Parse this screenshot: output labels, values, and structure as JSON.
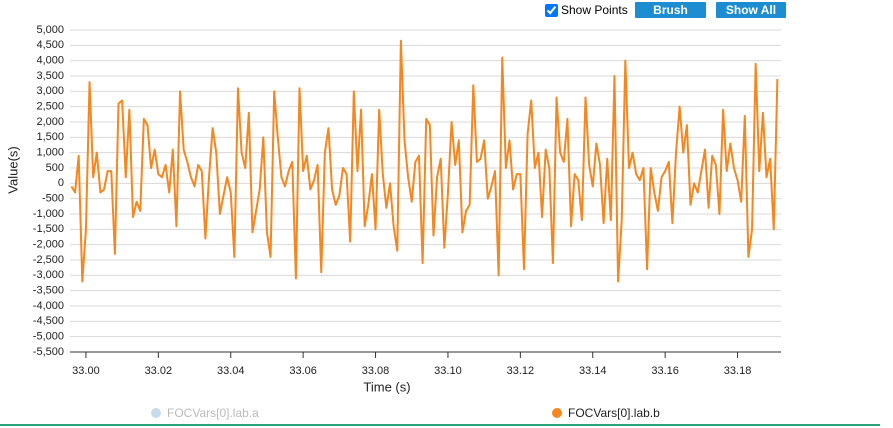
{
  "controls": {
    "show_points": {
      "label": "Show Points",
      "checked": true
    },
    "buttons": [
      "Brush",
      "Show All"
    ]
  },
  "chart_data": {
    "type": "line",
    "x_label": "Time (s)",
    "y_label": "Value(s)",
    "xlim": [
      32.9956,
      33.192
    ],
    "ylim": [
      -5500,
      5000
    ],
    "grid": true,
    "xticks": [
      {
        "value": 33.0,
        "label": "33.00"
      },
      {
        "value": 33.02,
        "label": "33.02"
      },
      {
        "value": 33.04,
        "label": "33.04"
      },
      {
        "value": 33.06,
        "label": "33.06"
      },
      {
        "value": 33.08,
        "label": "33.08"
      },
      {
        "value": 33.1,
        "label": "33.10"
      },
      {
        "value": 33.12,
        "label": "33.12"
      },
      {
        "value": 33.14,
        "label": "33.14"
      },
      {
        "value": 33.16,
        "label": "33.16"
      },
      {
        "value": 33.18,
        "label": "33.18"
      }
    ],
    "yticks": [
      {
        "value": 5000,
        "label": "5,000"
      },
      {
        "value": 4500,
        "label": "4,500"
      },
      {
        "value": 4000,
        "label": "4,000"
      },
      {
        "value": 3500,
        "label": "3,500"
      },
      {
        "value": 3000,
        "label": "3,000"
      },
      {
        "value": 2500,
        "label": "2,500"
      },
      {
        "value": 2000,
        "label": "2,000"
      },
      {
        "value": 1500,
        "label": "1,500"
      },
      {
        "value": 1000,
        "label": "1,000"
      },
      500,
      0,
      -500,
      {
        "value": -1000,
        "label": "-1,000"
      },
      {
        "value": -1500,
        "label": "-1,500"
      },
      {
        "value": -2000,
        "label": "-2,000"
      },
      {
        "value": -2500,
        "label": "-2,500"
      },
      {
        "value": -3000,
        "label": "-3,000"
      },
      {
        "value": -3500,
        "label": "-3,500"
      },
      {
        "value": -4000,
        "label": "-4,000"
      },
      {
        "value": -4500,
        "label": "-4,500"
      },
      {
        "value": -5000,
        "label": "-5,000"
      },
      {
        "value": -5500,
        "label": "-5,500"
      }
    ],
    "x": [
      32.996,
      32.997,
      32.998,
      32.999,
      33.0,
      33.001,
      33.002,
      33.003,
      33.004,
      33.005,
      33.006,
      33.007,
      33.008,
      33.009,
      33.01,
      33.011,
      33.012,
      33.013,
      33.014,
      33.015,
      33.016,
      33.017,
      33.018,
      33.019,
      33.02,
      33.021,
      33.022,
      33.023,
      33.024,
      33.025,
      33.026,
      33.027,
      33.028,
      33.029,
      33.03,
      33.031,
      33.032,
      33.033,
      33.034,
      33.035,
      33.036,
      33.037,
      33.038,
      33.039,
      33.04,
      33.041,
      33.042,
      33.043,
      33.044,
      33.045,
      33.046,
      33.047,
      33.048,
      33.049,
      33.05,
      33.051,
      33.052,
      33.053,
      33.054,
      33.055,
      33.056,
      33.057,
      33.058,
      33.059,
      33.06,
      33.061,
      33.062,
      33.063,
      33.064,
      33.065,
      33.066,
      33.067,
      33.068,
      33.069,
      33.07,
      33.071,
      33.072,
      33.073,
      33.074,
      33.075,
      33.076,
      33.077,
      33.078,
      33.079,
      33.08,
      33.081,
      33.082,
      33.083,
      33.084,
      33.085,
      33.086,
      33.087,
      33.088,
      33.089,
      33.09,
      33.091,
      33.092,
      33.093,
      33.094,
      33.095,
      33.096,
      33.097,
      33.098,
      33.099,
      33.1,
      33.101,
      33.102,
      33.103,
      33.104,
      33.105,
      33.106,
      33.107,
      33.108,
      33.109,
      33.11,
      33.111,
      33.112,
      33.113,
      33.114,
      33.115,
      33.116,
      33.117,
      33.118,
      33.119,
      33.12,
      33.121,
      33.122,
      33.123,
      33.124,
      33.125,
      33.126,
      33.127,
      33.128,
      33.129,
      33.13,
      33.131,
      33.132,
      33.133,
      33.134,
      33.135,
      33.136,
      33.137,
      33.138,
      33.139,
      33.14,
      33.141,
      33.142,
      33.143,
      33.144,
      33.145,
      33.146,
      33.147,
      33.148,
      33.149,
      33.15,
      33.151,
      33.152,
      33.153,
      33.154,
      33.155,
      33.156,
      33.157,
      33.158,
      33.159,
      33.16,
      33.161,
      33.162,
      33.163,
      33.164,
      33.165,
      33.166,
      33.167,
      33.168,
      33.169,
      33.17,
      33.171,
      33.172,
      33.173,
      33.174,
      33.175,
      33.176,
      33.177,
      33.178,
      33.179,
      33.18,
      33.181,
      33.182,
      33.183,
      33.184,
      33.185,
      33.186,
      33.187,
      33.188,
      33.189,
      33.19,
      33.191
    ],
    "series": [
      {
        "name": "FOCVars[0].lab.a",
        "color": "#c6dcea",
        "visible": false
      },
      {
        "name": "FOCVars[0].lab.b",
        "color": "#f4871f",
        "visible": true,
        "values": [
          -100,
          -300,
          900,
          -3200,
          -1500,
          3300,
          200,
          1000,
          -300,
          -200,
          400,
          400,
          -2300,
          2600,
          2700,
          200,
          2400,
          -1100,
          -600,
          -900,
          2100,
          1900,
          500,
          1100,
          300,
          200,
          600,
          -300,
          1100,
          -1400,
          3000,
          1100,
          700,
          200,
          -100,
          600,
          400,
          -1800,
          200,
          1800,
          1000,
          -1000,
          -400,
          200,
          -300,
          -2400,
          3100,
          1000,
          500,
          2300,
          -1600,
          -900,
          -200,
          1500,
          -1600,
          -2400,
          3000,
          1500,
          200,
          -100,
          400,
          700,
          -3100,
          3100,
          400,
          900,
          -200,
          100,
          600,
          -2900,
          1000,
          1800,
          -200,
          -700,
          -400,
          500,
          300,
          -1900,
          3000,
          400,
          2400,
          -1400,
          -700,
          300,
          -1500,
          2400,
          300,
          -800,
          0,
          -1400,
          -2200,
          4650,
          1400,
          200,
          -600,
          700,
          900,
          -2600,
          2100,
          1900,
          -1700,
          200,
          800,
          -2100,
          -300,
          2000,
          600,
          1400,
          -1600,
          -900,
          -700,
          3200,
          700,
          800,
          1400,
          -500,
          -100,
          400,
          -3000,
          4100,
          500,
          1400,
          -200,
          300,
          300,
          -2800,
          1600,
          2700,
          500,
          1000,
          -1100,
          1100,
          500,
          -2600,
          2800,
          1000,
          700,
          2100,
          -1400,
          300,
          100,
          -1200,
          2800,
          600,
          -100,
          1300,
          600,
          -1300,
          800,
          -1200,
          3500,
          -3200,
          -1200,
          4000,
          500,
          1000,
          300,
          100,
          500,
          -2800,
          500,
          -300,
          -900,
          200,
          400,
          700,
          -1300,
          1000,
          2500,
          1000,
          1900,
          -700,
          0,
          -300,
          400,
          1100,
          -800,
          900,
          600,
          -1000,
          2400,
          400,
          1300,
          500,
          100,
          -600,
          2200,
          -2400,
          -1500,
          3900,
          400,
          2300,
          200,
          800,
          -1500,
          3400
        ]
      }
    ]
  }
}
